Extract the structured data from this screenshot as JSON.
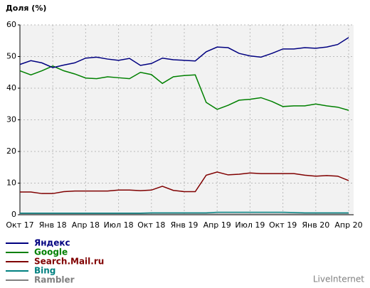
{
  "chart_data": {
    "type": "line",
    "y_axis_label": "Доля (%)",
    "categories": [
      "Окт 17",
      null,
      null,
      "Янв 18",
      null,
      null,
      "Апр 18",
      null,
      null,
      "Июл 18",
      null,
      null,
      "Окт 18",
      null,
      null,
      "Янв 19",
      null,
      null,
      "Апр 19",
      null,
      null,
      "Июл 19",
      null,
      null,
      "Окт 19",
      null,
      null,
      "Янв 20",
      null,
      null,
      "Апр 20"
    ],
    "series": [
      {
        "name": "Яндекс",
        "color": "#000080",
        "values": [
          47.5,
          48.7,
          48,
          46.5,
          47.3,
          48,
          49.5,
          49.8,
          49.2,
          48.8,
          49.4,
          47.2,
          47.8,
          49.5,
          49,
          48.8,
          48.6,
          51.5,
          53,
          52.8,
          51,
          50.2,
          49.8,
          51,
          52.4,
          52.4,
          52.8,
          52.6,
          53,
          53.8,
          56
        ]
      },
      {
        "name": "Google",
        "color": "#008000",
        "values": [
          45.5,
          44.2,
          45.5,
          47,
          45.5,
          44.5,
          43.2,
          43,
          43.6,
          43.3,
          43,
          45,
          44.3,
          41.5,
          43.6,
          44,
          44.2,
          35.5,
          33.3,
          34.6,
          36.2,
          36.5,
          37,
          35.8,
          34.2,
          34.4,
          34.4,
          35,
          34.4,
          34,
          33
        ]
      },
      {
        "name": "Search.Mail.ru",
        "color": "#800000",
        "values": [
          7.2,
          7.2,
          6.7,
          6.7,
          7.3,
          7.5,
          7.5,
          7.5,
          7.5,
          7.8,
          7.8,
          7.6,
          7.8,
          9,
          7.7,
          7.3,
          7.3,
          12.5,
          13.5,
          12.6,
          12.8,
          13.2,
          13,
          13,
          13,
          13,
          12.5,
          12.2,
          12.4,
          12.2,
          10.8
        ]
      },
      {
        "name": "Bing",
        "color": "#008080",
        "values": [
          0.5,
          0.5,
          0.5,
          0.5,
          0.5,
          0.5,
          0.5,
          0.5,
          0.5,
          0.5,
          0.5,
          0.5,
          0.6,
          0.6,
          0.6,
          0.6,
          0.6,
          0.6,
          0.8,
          0.8,
          0.8,
          0.8,
          0.8,
          0.8,
          0.8,
          0.7,
          0.6,
          0.6,
          0.6,
          0.6,
          0.6
        ]
      },
      {
        "name": "Rambler",
        "color": "#808080",
        "values": [
          0.2,
          0.2,
          0.2,
          0.2,
          0.2,
          0.2,
          0.2,
          0.2,
          0.2,
          0.2,
          0.2,
          0.2,
          0.2,
          0.2,
          0.2,
          0.2,
          0.2,
          0.2,
          0.2,
          0.2,
          0.2,
          0.2,
          0.2,
          0.2,
          0.2,
          0.2,
          0.2,
          0.2,
          0.2,
          0.2,
          0.2
        ]
      }
    ],
    "ylim": [
      0,
      60
    ],
    "yticks": [
      0,
      10,
      20,
      30,
      40,
      50,
      60
    ],
    "grid": true,
    "watermark": "LiveInternet"
  }
}
